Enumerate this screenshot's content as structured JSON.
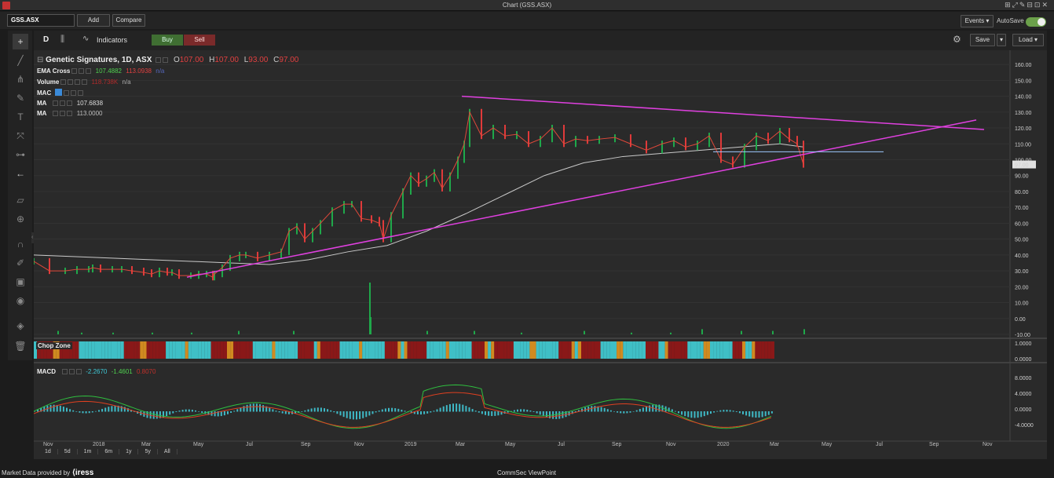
{
  "window": {
    "title": "Chart (GSS.ASX)"
  },
  "toolbar": {
    "symbol": "GSS.ASX",
    "add_label": "Add",
    "compare_label": "Compare",
    "events_label": "Events ▾",
    "autosave_label": "AutoSave"
  },
  "chart_toolbar": {
    "interval": "D",
    "indicators_label": "Indicators",
    "buy_label": "Buy",
    "sell_label": "Sell",
    "save_label": "Save",
    "load_label": "Load ▾"
  },
  "legend": {
    "title": "Genetic Signatures, 1D, ASX",
    "o_label": "O",
    "o": "107.00",
    "h_label": "H",
    "h": "107.00",
    "l_label": "L",
    "l": "93.00",
    "c_label": "C",
    "c": "97.00",
    "ema_label": "EMA Cross",
    "ema_fast": "107.4882",
    "ema_slow": "113.0938",
    "volume_label": "Volume",
    "volume_value": "118.738K",
    "volume_na": "n/a",
    "mac_label": "MAC",
    "ma1_label": "MA",
    "ma1_value": "107.6838",
    "ma2_label": "MA",
    "ma2_value": "113.0000"
  },
  "chop_zone": {
    "label": "Chop Zone",
    "value": "-1.0000"
  },
  "macd": {
    "label": "MACD",
    "v1": "-2.2670",
    "v2": "-1.4601",
    "v3": "0.8070"
  },
  "timeframes": [
    "1d",
    "5d",
    "1m",
    "6m",
    "1y",
    "5y",
    "All"
  ],
  "footer": {
    "provider_text": "Market Data provided by",
    "provider_logo": "iress",
    "center_text": "CommSec ViewPoint"
  },
  "price_tag": "97.00",
  "colors": {
    "up": "#1fa84a",
    "down": "#e03a3a",
    "trendline": "#e040e0",
    "hline": "#9ec9ff",
    "macd_line": "#2fbf3f",
    "signal_line": "#e04020",
    "hist": "#3fb9c6",
    "chop_cyan": "#3fbfc6",
    "chop_red": "#8a1818"
  },
  "chart_data": {
    "type": "line",
    "title": "Genetic Signatures, 1D, ASX",
    "ylim": [
      -10,
      165
    ],
    "yticks": [
      "160.00",
      "150.00",
      "140.00",
      "130.00",
      "120.00",
      "110.00",
      "100.00",
      "90.00",
      "80.00",
      "70.00",
      "60.00",
      "50.00",
      "40.00",
      "30.00",
      "20.00",
      "10.00",
      "0.00",
      "-10.00"
    ],
    "xticks": [
      "Nov",
      "2018",
      "Mar",
      "May",
      "Jul",
      "Sep",
      "Nov",
      "2019",
      "Mar",
      "May",
      "Jul",
      "Sep",
      "Nov",
      "2020",
      "Mar",
      "May",
      "Jul",
      "Sep",
      "Nov"
    ],
    "price_x": [
      0,
      20,
      40,
      55,
      70,
      75,
      85,
      100,
      112,
      125,
      140,
      150,
      160,
      170,
      176,
      185,
      200,
      210,
      220,
      228,
      230,
      240,
      250,
      262,
      270,
      285,
      300,
      315,
      325,
      335,
      345,
      355,
      365,
      380,
      395,
      405,
      417,
      430,
      440,
      445,
      455,
      470,
      480,
      490,
      500,
      510,
      520,
      530,
      540,
      548,
      555,
      570,
      585,
      600,
      615,
      630,
      645,
      660,
      675,
      690,
      705,
      720,
      740,
      760,
      780,
      800,
      815,
      830,
      845,
      860,
      875,
      890,
      905,
      920,
      935,
      950,
      962,
      972,
      980
    ],
    "price_y": [
      36,
      30,
      30,
      31,
      31,
      32,
      31,
      31,
      31,
      30,
      29,
      28,
      30,
      29,
      29,
      27,
      27,
      28,
      28,
      26,
      28,
      32,
      38,
      40,
      40,
      38,
      40,
      42,
      55,
      58,
      50,
      55,
      60,
      68,
      72,
      72,
      63,
      62,
      60,
      50,
      65,
      80,
      90,
      85,
      88,
      92,
      82,
      90,
      100,
      110,
      130,
      115,
      120,
      115,
      116,
      110,
      113,
      120,
      110,
      113,
      112,
      113,
      114,
      110,
      106,
      110,
      112,
      108,
      110,
      115,
      100,
      97,
      108,
      115,
      112,
      118,
      113,
      110,
      97
    ],
    "ma_long_x": [
      0,
      100,
      200,
      250,
      300,
      350,
      400,
      450,
      500,
      550,
      600,
      650,
      700,
      750,
      800,
      850,
      900,
      950,
      980
    ],
    "ma_long_y": [
      40,
      38,
      36,
      35,
      34,
      37,
      42,
      46,
      55,
      66,
      78,
      90,
      98,
      102,
      104,
      106,
      108,
      110,
      108
    ],
    "volume_x": [
      30,
      60,
      100,
      150,
      200,
      260,
      330,
      427,
      428,
      500,
      560,
      620,
      700,
      760,
      810,
      850,
      900,
      940,
      980
    ],
    "volume_y": [
      2,
      1,
      1,
      1,
      1,
      2,
      2,
      30,
      10,
      2,
      2,
      1,
      2,
      1,
      1,
      3,
      2,
      2,
      3
    ],
    "trendline_upper": {
      "from": [
        545,
        140
      ],
      "to": [
        1210,
        119
      ]
    },
    "trendline_lower": {
      "from": [
        195,
        26
      ],
      "to": [
        1200,
        125
      ]
    },
    "resistance_level": 105
  }
}
